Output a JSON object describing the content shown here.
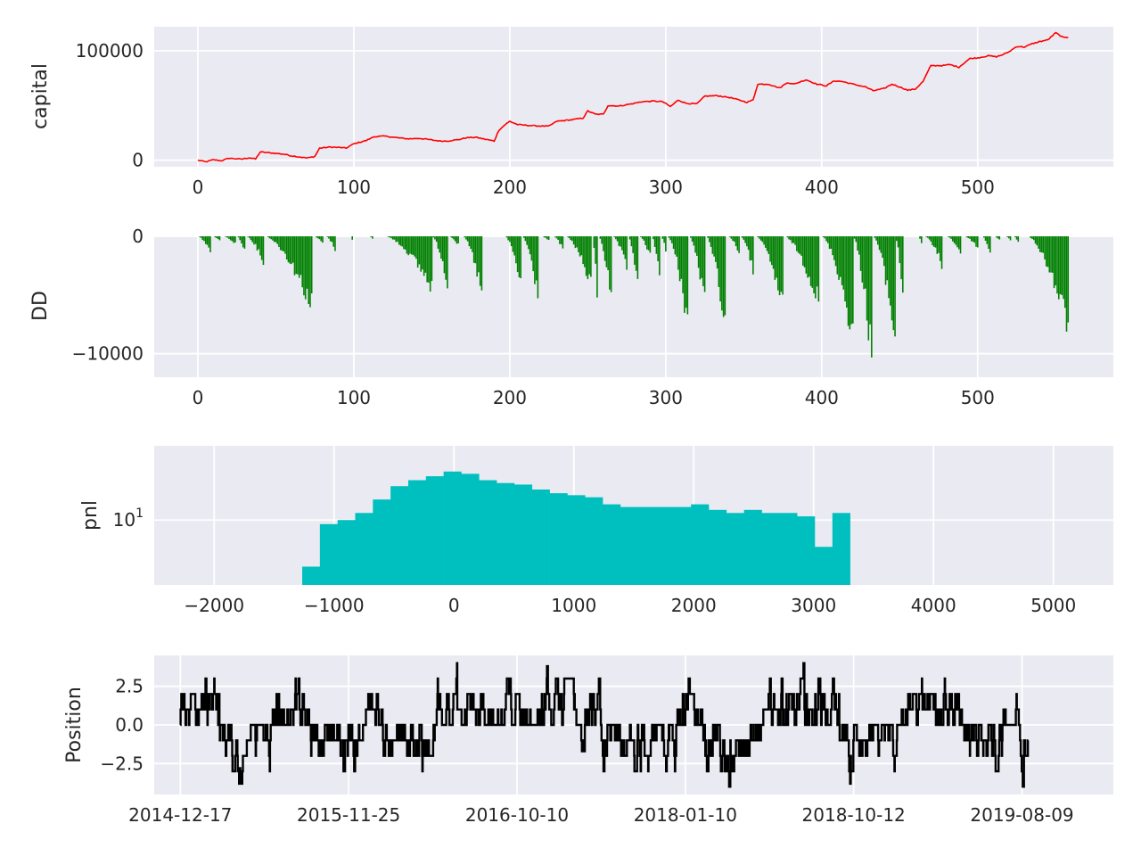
{
  "colors": {
    "background": "#eaeaf2",
    "grid": "#ffffff",
    "capital_line": "#ff0000",
    "dd_bars": "#008000",
    "pnl_bars": "#00bfbf",
    "position_line": "#000000"
  },
  "chart_data": [
    {
      "type": "line",
      "ylabel": "capital",
      "grid": true,
      "xlim": [
        -28,
        587
      ],
      "ylim": [
        -6000,
        122000
      ],
      "x_ticks": [
        0,
        100,
        200,
        300,
        400,
        500
      ],
      "x_tick_labels": [
        "0",
        "100",
        "200",
        "300",
        "400",
        "500"
      ],
      "y_ticks": [
        0,
        100000
      ],
      "y_tick_labels": [
        "0",
        "100000"
      ],
      "x_max": 558,
      "series_anchors": [
        [
          0,
          0
        ],
        [
          5,
          -1500
        ],
        [
          10,
          400
        ],
        [
          15,
          -500
        ],
        [
          20,
          1800
        ],
        [
          28,
          900
        ],
        [
          33,
          2200
        ],
        [
          37,
          1000
        ],
        [
          40,
          7500
        ],
        [
          48,
          6500
        ],
        [
          55,
          5500
        ],
        [
          60,
          4000
        ],
        [
          65,
          3000
        ],
        [
          70,
          2000
        ],
        [
          73,
          2800
        ],
        [
          75,
          3500
        ],
        [
          78,
          11000
        ],
        [
          85,
          12000
        ],
        [
          92,
          11500
        ],
        [
          95,
          11000
        ],
        [
          100,
          15000
        ],
        [
          108,
          18000
        ],
        [
          113,
          21500
        ],
        [
          120,
          22000
        ],
        [
          128,
          20500
        ],
        [
          135,
          19500
        ],
        [
          142,
          20000
        ],
        [
          150,
          18500
        ],
        [
          155,
          17500
        ],
        [
          160,
          17500
        ],
        [
          168,
          19000
        ],
        [
          172,
          20500
        ],
        [
          178,
          21000
        ],
        [
          183,
          19500
        ],
        [
          190,
          17500
        ],
        [
          193,
          27500
        ],
        [
          197,
          32500
        ],
        [
          200,
          35500
        ],
        [
          205,
          32500
        ],
        [
          215,
          31500
        ],
        [
          225,
          31000
        ],
        [
          230,
          35500
        ],
        [
          240,
          37000
        ],
        [
          247,
          38500
        ],
        [
          250,
          45000
        ],
        [
          255,
          42000
        ],
        [
          260,
          42000
        ],
        [
          263,
          50000
        ],
        [
          270,
          49500
        ],
        [
          278,
          51500
        ],
        [
          285,
          53500
        ],
        [
          292,
          54000
        ],
        [
          298,
          53500
        ],
        [
          303,
          49000
        ],
        [
          308,
          55000
        ],
        [
          313,
          52000
        ],
        [
          320,
          51500
        ],
        [
          325,
          58500
        ],
        [
          333,
          59000
        ],
        [
          342,
          57000
        ],
        [
          352,
          53000
        ],
        [
          356,
          55000
        ],
        [
          359,
          69500
        ],
        [
          366,
          69500
        ],
        [
          373,
          66000
        ],
        [
          378,
          71000
        ],
        [
          382,
          69500
        ],
        [
          390,
          73500
        ],
        [
          397,
          69500
        ],
        [
          403,
          68000
        ],
        [
          408,
          72500
        ],
        [
          413,
          72000
        ],
        [
          420,
          69500
        ],
        [
          428,
          67000
        ],
        [
          433,
          63500
        ],
        [
          440,
          65500
        ],
        [
          445,
          69500
        ],
        [
          450,
          67000
        ],
        [
          455,
          64000
        ],
        [
          460,
          65000
        ],
        [
          465,
          72000
        ],
        [
          470,
          86500
        ],
        [
          478,
          86500
        ],
        [
          482,
          87500
        ],
        [
          488,
          85000
        ],
        [
          495,
          93000
        ],
        [
          500,
          93500
        ],
        [
          507,
          95500
        ],
        [
          512,
          94500
        ],
        [
          517,
          97000
        ],
        [
          520,
          99000
        ],
        [
          525,
          104000
        ],
        [
          530,
          103500
        ],
        [
          535,
          106500
        ],
        [
          540,
          108500
        ],
        [
          545,
          110000
        ],
        [
          550,
          116500
        ],
        [
          555,
          112000
        ],
        [
          562,
          113000
        ],
        [
          570,
          109000
        ],
        [
          573,
          109000
        ],
        [
          578,
          116500
        ]
      ],
      "series_color": "#ff0000"
    },
    {
      "type": "bar",
      "ylabel": "DD",
      "grid": true,
      "xlim": [
        -28,
        587
      ],
      "ylim": [
        -12000,
        0
      ],
      "x_ticks": [
        0,
        100,
        200,
        300,
        400,
        500
      ],
      "x_tick_labels": [
        "0",
        "100",
        "200",
        "300",
        "400",
        "500"
      ],
      "y_ticks": [
        -10000,
        0
      ],
      "y_tick_labels": [
        "−10000",
        "0"
      ],
      "x_max": 558,
      "episodes": [
        [
          0,
          8,
          -1400
        ],
        [
          9,
          14,
          -400
        ],
        [
          16,
          24,
          -700
        ],
        [
          25,
          30,
          -1300
        ],
        [
          31,
          42,
          -2300
        ],
        [
          43,
          73,
          -6300
        ],
        [
          74,
          80,
          -600
        ],
        [
          82,
          88,
          -1200
        ],
        [
          98,
          99,
          -300
        ],
        [
          110,
          112,
          -200
        ],
        [
          120,
          150,
          -4600
        ],
        [
          150,
          160,
          -4200
        ],
        [
          161,
          167,
          -800
        ],
        [
          170,
          182,
          -5200
        ],
        [
          197,
          207,
          -4400
        ],
        [
          208,
          218,
          -5500
        ],
        [
          220,
          225,
          -400
        ],
        [
          228,
          234,
          -1200
        ],
        [
          236,
          252,
          -4500
        ],
        [
          253,
          256,
          -5500
        ],
        [
          257,
          265,
          -6000
        ],
        [
          266,
          275,
          -3000
        ],
        [
          276,
          282,
          -4700
        ],
        [
          283,
          290,
          -1800
        ],
        [
          291,
          296,
          -3700
        ],
        [
          297,
          300,
          -1200
        ],
        [
          301,
          314,
          -7800
        ],
        [
          315,
          325,
          -6200
        ],
        [
          326,
          338,
          -8100
        ],
        [
          340,
          347,
          -1500
        ],
        [
          348,
          356,
          -3200
        ],
        [
          358,
          375,
          -6400
        ],
        [
          376,
          398,
          -6000
        ],
        [
          400,
          420,
          -9100
        ],
        [
          420,
          432,
          -11000
        ],
        [
          433,
          447,
          -9300
        ],
        [
          447,
          452,
          -5300
        ],
        [
          462,
          464,
          -600
        ],
        [
          466,
          477,
          -2600
        ],
        [
          480,
          489,
          -1500
        ],
        [
          491,
          500,
          -1000
        ],
        [
          503,
          508,
          -1600
        ],
        [
          510,
          514,
          -300
        ],
        [
          518,
          521,
          -400
        ],
        [
          523,
          526,
          -500
        ],
        [
          532,
          558,
          -8300
        ]
      ],
      "bar_color": "#008000"
    },
    {
      "type": "bar",
      "ylabel": "pnl",
      "grid": true,
      "yscale": "log",
      "xlim": [
        -2500,
        5500
      ],
      "ylim": [
        1.87,
        68
      ],
      "x_ticks": [
        -2000,
        -1000,
        0,
        1000,
        2000,
        3000,
        4000,
        5000
      ],
      "x_tick_labels": [
        "−2000",
        "−1000",
        "0",
        "1000",
        "2000",
        "3000",
        "4000",
        "5000"
      ],
      "y_ticks": [
        10
      ],
      "y_tick_labels": [
        "10"
      ],
      "y_tick_exp": "1",
      "bin_start": -2150,
      "bin_width": 147.4,
      "counts": [
        1,
        0,
        0,
        0,
        1,
        1,
        3,
        9,
        10,
        12,
        17,
        24,
        28,
        31,
        35,
        33,
        28,
        26,
        25,
        22,
        20,
        19,
        18,
        15,
        14,
        14,
        14,
        14,
        15,
        13,
        12,
        13,
        12,
        12,
        11,
        5,
        12,
        1,
        1,
        1,
        1,
        1,
        1,
        1,
        1,
        1,
        1,
        1,
        0,
        1,
        0,
        1,
        0,
        0,
        1
      ],
      "bar_color": "#00bfbf"
    },
    {
      "type": "line",
      "ylabel": "Position",
      "grid": true,
      "xlim": [
        -80,
        2860
      ],
      "ylim": [
        -4.5,
        4.5
      ],
      "x_ticks": [
        0,
        516,
        1032,
        1548,
        2064,
        2580
      ],
      "x_tick_labels": [
        "2014-12-17",
        "2015-11-25",
        "2016-10-10",
        "2018-01-10",
        "2018-10-12",
        "2019-08-09"
      ],
      "y_ticks": [
        -2.5,
        0.0,
        2.5
      ],
      "y_tick_labels": [
        "−2.5",
        "0.0",
        "2.5"
      ],
      "n_points": 2600,
      "segments": [
        [
          0,
          120,
          3.2
        ],
        [
          120,
          280,
          -3.0
        ],
        [
          280,
          400,
          3.0
        ],
        [
          400,
          560,
          -3.0
        ],
        [
          560,
          620,
          3.2
        ],
        [
          620,
          780,
          -3.0
        ],
        [
          780,
          860,
          3.5
        ],
        [
          860,
          1160,
          3.0
        ],
        [
          1160,
          1220,
          3.5
        ],
        [
          1220,
          1240,
          -0.9
        ],
        [
          1240,
          1290,
          3.5
        ],
        [
          1290,
          1520,
          -3.2
        ],
        [
          1520,
          1600,
          3.0
        ],
        [
          1600,
          1710,
          -3.2
        ],
        [
          1710,
          1780,
          -1.3
        ],
        [
          1780,
          1900,
          3.0
        ],
        [
          1900,
          2020,
          3.5
        ],
        [
          2020,
          2100,
          -3.0
        ],
        [
          2100,
          2200,
          -3.3
        ],
        [
          2200,
          2320,
          3.0
        ],
        [
          2320,
          2400,
          2.8
        ],
        [
          2400,
          2520,
          -3.2
        ],
        [
          2520,
          2570,
          3.5
        ],
        [
          2570,
          2600,
          -3.6
        ]
      ],
      "series_color": "#000000"
    }
  ]
}
